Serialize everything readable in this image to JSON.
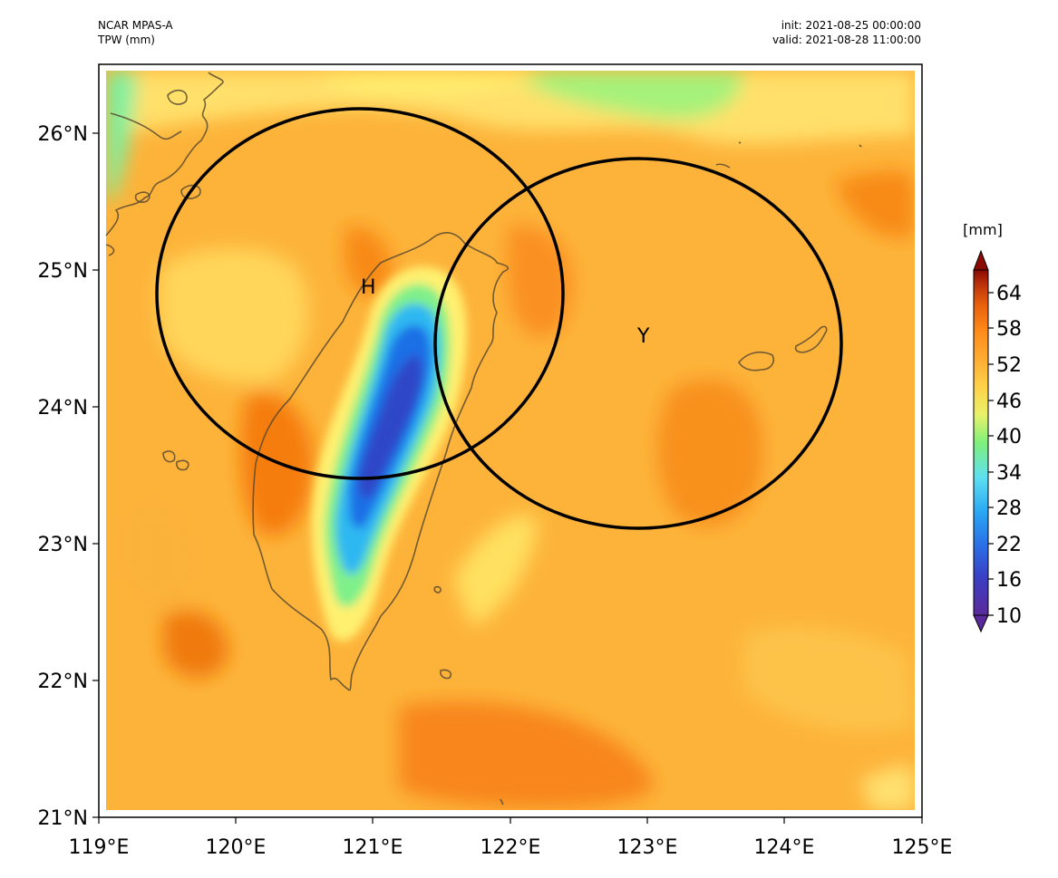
{
  "header": {
    "model": "NCAR MPAS-A",
    "variable": "TPW (mm)",
    "init": "init: 2021-08-25 00:00:00",
    "valid": "valid: 2021-08-28 11:00:00"
  },
  "map": {
    "lon_ticks": [
      "119°E",
      "120°E",
      "121°E",
      "122°E",
      "123°E",
      "124°E",
      "125°E"
    ],
    "lat_ticks": [
      "21°N",
      "22°N",
      "23°N",
      "24°N",
      "25°N",
      "26°N"
    ],
    "markers": [
      {
        "label": "H",
        "lon": 121.0,
        "lat": 24.8
      },
      {
        "label": "Y",
        "lon": 123.0,
        "lat": 24.45
      }
    ]
  },
  "colorbar": {
    "unit": "[mm]",
    "tick_labels": [
      "10",
      "16",
      "22",
      "28",
      "34",
      "40",
      "46",
      "52",
      "58",
      "64"
    ],
    "colors": [
      "#5b2a9a",
      "#3a3fc4",
      "#2a6ee6",
      "#2aa8f4",
      "#5fe0f0",
      "#7ff07a",
      "#e8f26a",
      "#ffd24a",
      "#ffad33",
      "#ff8c1a",
      "#e8600c",
      "#b8300a",
      "#8a0a02"
    ]
  }
}
